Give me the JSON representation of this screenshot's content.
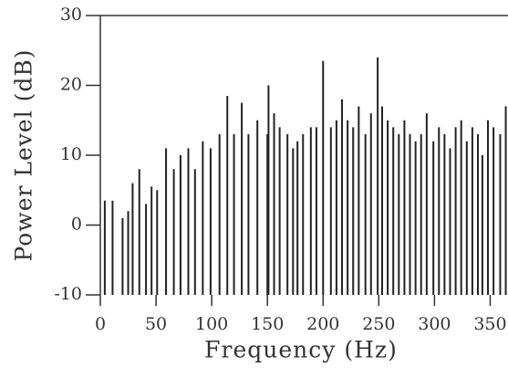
{
  "chart_data": {
    "type": "stem",
    "x_label": "Frequency (Hz)",
    "y_label": "Power Level (dB)",
    "color": "#222222",
    "xlim": [
      0,
      366
    ],
    "ylim": [
      -10,
      30
    ],
    "xticks": [
      0,
      50,
      100,
      150,
      200,
      250,
      300,
      350
    ],
    "yticks": [
      30,
      20,
      10,
      0,
      -10
    ],
    "x": [
      4,
      11,
      20,
      25,
      29,
      35,
      41,
      46,
      51,
      59,
      66,
      72,
      79,
      85,
      92,
      99,
      107,
      114,
      120,
      127,
      133,
      141,
      150,
      151,
      156,
      161,
      168,
      173,
      177,
      182,
      189,
      194,
      200,
      207,
      212,
      217,
      222,
      227,
      232,
      238,
      243,
      249,
      253,
      258,
      263,
      268,
      273,
      278,
      283,
      288,
      293,
      299,
      304,
      309,
      314,
      319,
      324,
      329,
      334,
      339,
      343,
      348,
      353,
      359,
      364
    ],
    "values": [
      3.5,
      3.5,
      1,
      2,
      6,
      8,
      3,
      5.5,
      5,
      11,
      8,
      10,
      11,
      8,
      12,
      11,
      13,
      18.5,
      13,
      17.5,
      13,
      15,
      13,
      20,
      16,
      14,
      13,
      11,
      12,
      13,
      14,
      14,
      23.5,
      14,
      15,
      18,
      15,
      14,
      17,
      13,
      16,
      24,
      17,
      15,
      14,
      13,
      15,
      13,
      12,
      13,
      16,
      12,
      14,
      13,
      11,
      14,
      15,
      12,
      14,
      13,
      10,
      15,
      14,
      13,
      17
    ]
  }
}
